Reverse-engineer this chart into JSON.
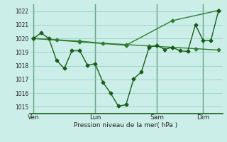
{
  "background_color": "#cceee8",
  "grid_color": "#88ccbb",
  "line_color_dark": "#1a5c1a",
  "line_color_mid": "#2e7d32",
  "ylim": [
    1014.5,
    1022.5
  ],
  "yticks": [
    1015,
    1016,
    1017,
    1018,
    1019,
    1020,
    1021,
    1022
  ],
  "xlabel": "Pression niveau de la mer( hPa )",
  "day_labels": [
    "Ven",
    "Lun",
    "Sam",
    "Dim"
  ],
  "day_positions": [
    0,
    8,
    16,
    22
  ],
  "vline_positions": [
    0,
    8,
    16,
    22
  ],
  "series1_x": [
    0,
    1,
    2,
    3,
    4,
    5,
    6,
    7,
    8,
    9,
    10,
    11,
    12,
    13,
    14,
    15,
    16,
    17,
    18,
    19,
    20,
    21,
    22,
    23,
    24
  ],
  "series1_y": [
    1020.0,
    1020.4,
    1020.0,
    1018.4,
    1017.8,
    1019.1,
    1019.1,
    1018.05,
    1018.15,
    1016.8,
    1016.0,
    1015.05,
    1015.15,
    1017.05,
    1017.55,
    1019.35,
    1019.5,
    1019.2,
    1019.35,
    1019.1,
    1019.05,
    1021.0,
    1019.85,
    1019.85,
    1022.05
  ],
  "series2_x": [
    0,
    3,
    6,
    9,
    12,
    15,
    18,
    21,
    24
  ],
  "series2_y": [
    1020.0,
    1019.9,
    1019.8,
    1019.65,
    1019.55,
    1019.45,
    1019.35,
    1019.25,
    1019.15
  ],
  "series3_x": [
    0,
    6,
    12,
    18,
    24
  ],
  "series3_y": [
    1020.0,
    1019.75,
    1019.5,
    1021.3,
    1022.05
  ],
  "marker": "D",
  "marker_size": 2.5,
  "linewidth": 1.0
}
